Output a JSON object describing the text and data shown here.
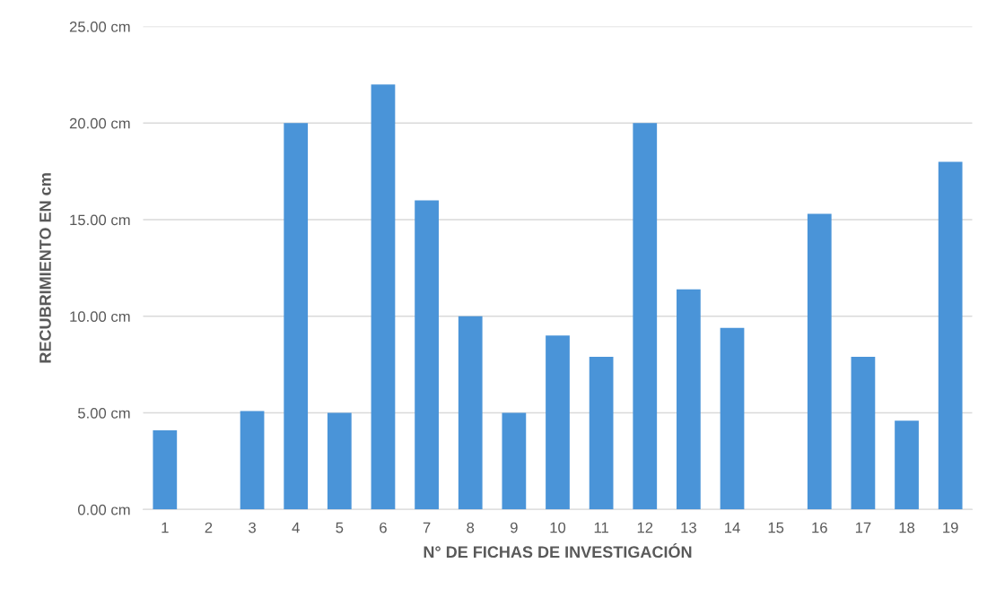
{
  "chart_data": {
    "type": "bar",
    "xlabel": "N° DE FICHAS DE INVESTIGACIÓN",
    "ylabel": "RECUBRIMIENTO EN cm",
    "categories": [
      "1",
      "2",
      "3",
      "4",
      "5",
      "6",
      "7",
      "8",
      "9",
      "10",
      "11",
      "12",
      "13",
      "14",
      "15",
      "16",
      "17",
      "18",
      "19"
    ],
    "values": [
      4.1,
      0,
      5.1,
      20,
      5,
      22,
      16,
      10,
      5,
      9,
      7.9,
      20,
      11.4,
      9.4,
      0,
      15.3,
      7.9,
      4.6,
      18
    ],
    "color": "#4a94d8",
    "ylim": [
      0,
      25
    ],
    "yticks": [
      {
        "value": 0,
        "label": "0.00 cm"
      },
      {
        "value": 5,
        "label": "5.00 cm"
      },
      {
        "value": 10,
        "label": "10.00 cm"
      },
      {
        "value": 15,
        "label": "15.00 cm"
      },
      {
        "value": 20,
        "label": "20.00 cm"
      },
      {
        "value": 25,
        "label": "25.00 cm"
      }
    ],
    "grid": "y",
    "legend": false
  }
}
